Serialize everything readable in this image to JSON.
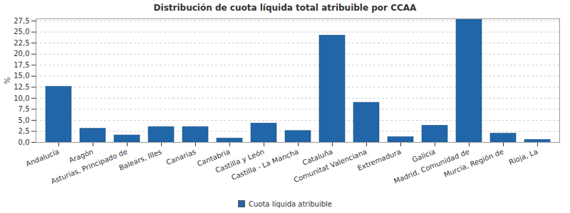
{
  "chart_data": {
    "type": "bar",
    "title": "Distribución de cuota líquida total atribuible por CCAA",
    "y_label": "%",
    "categories": [
      "Andalucía",
      "Aragón",
      "Asturias, Principado de",
      "Balears, Illes",
      "Canarias",
      "Cantabria",
      "Castilla y León",
      "Castilla - La Mancha",
      "Cataluña",
      "Comunitat Valenciana",
      "Extremadura",
      "Galicia",
      "Madrid, Comunidad de",
      "Murcia, Región de",
      "Rioja, La"
    ],
    "series": [
      {
        "name": "Cuota líquida atribuible",
        "color": "#2166a8",
        "values": [
          12.6,
          3.1,
          1.6,
          3.5,
          3.5,
          0.9,
          4.3,
          2.6,
          24.2,
          9.0,
          1.2,
          3.8,
          28.0,
          2.0,
          0.6
        ]
      }
    ],
    "ylim": [
      0,
      28
    ],
    "yticks": [
      {
        "value": 0,
        "label": "0,0"
      },
      {
        "value": 2.5,
        "label": "2,5"
      },
      {
        "value": 5,
        "label": "5,0"
      },
      {
        "value": 7.5,
        "label": "7,5"
      },
      {
        "value": 10,
        "label": "10,0"
      },
      {
        "value": 12.5,
        "label": "12,5"
      },
      {
        "value": 15,
        "label": "15,0"
      },
      {
        "value": 17.5,
        "label": "17,5"
      },
      {
        "value": 20,
        "label": "20,0"
      },
      {
        "value": 22.5,
        "label": "22,5"
      },
      {
        "value": 25,
        "label": "25,0"
      },
      {
        "value": 27.5,
        "label": "27,5"
      }
    ],
    "grid": true,
    "legend": "bottom"
  }
}
